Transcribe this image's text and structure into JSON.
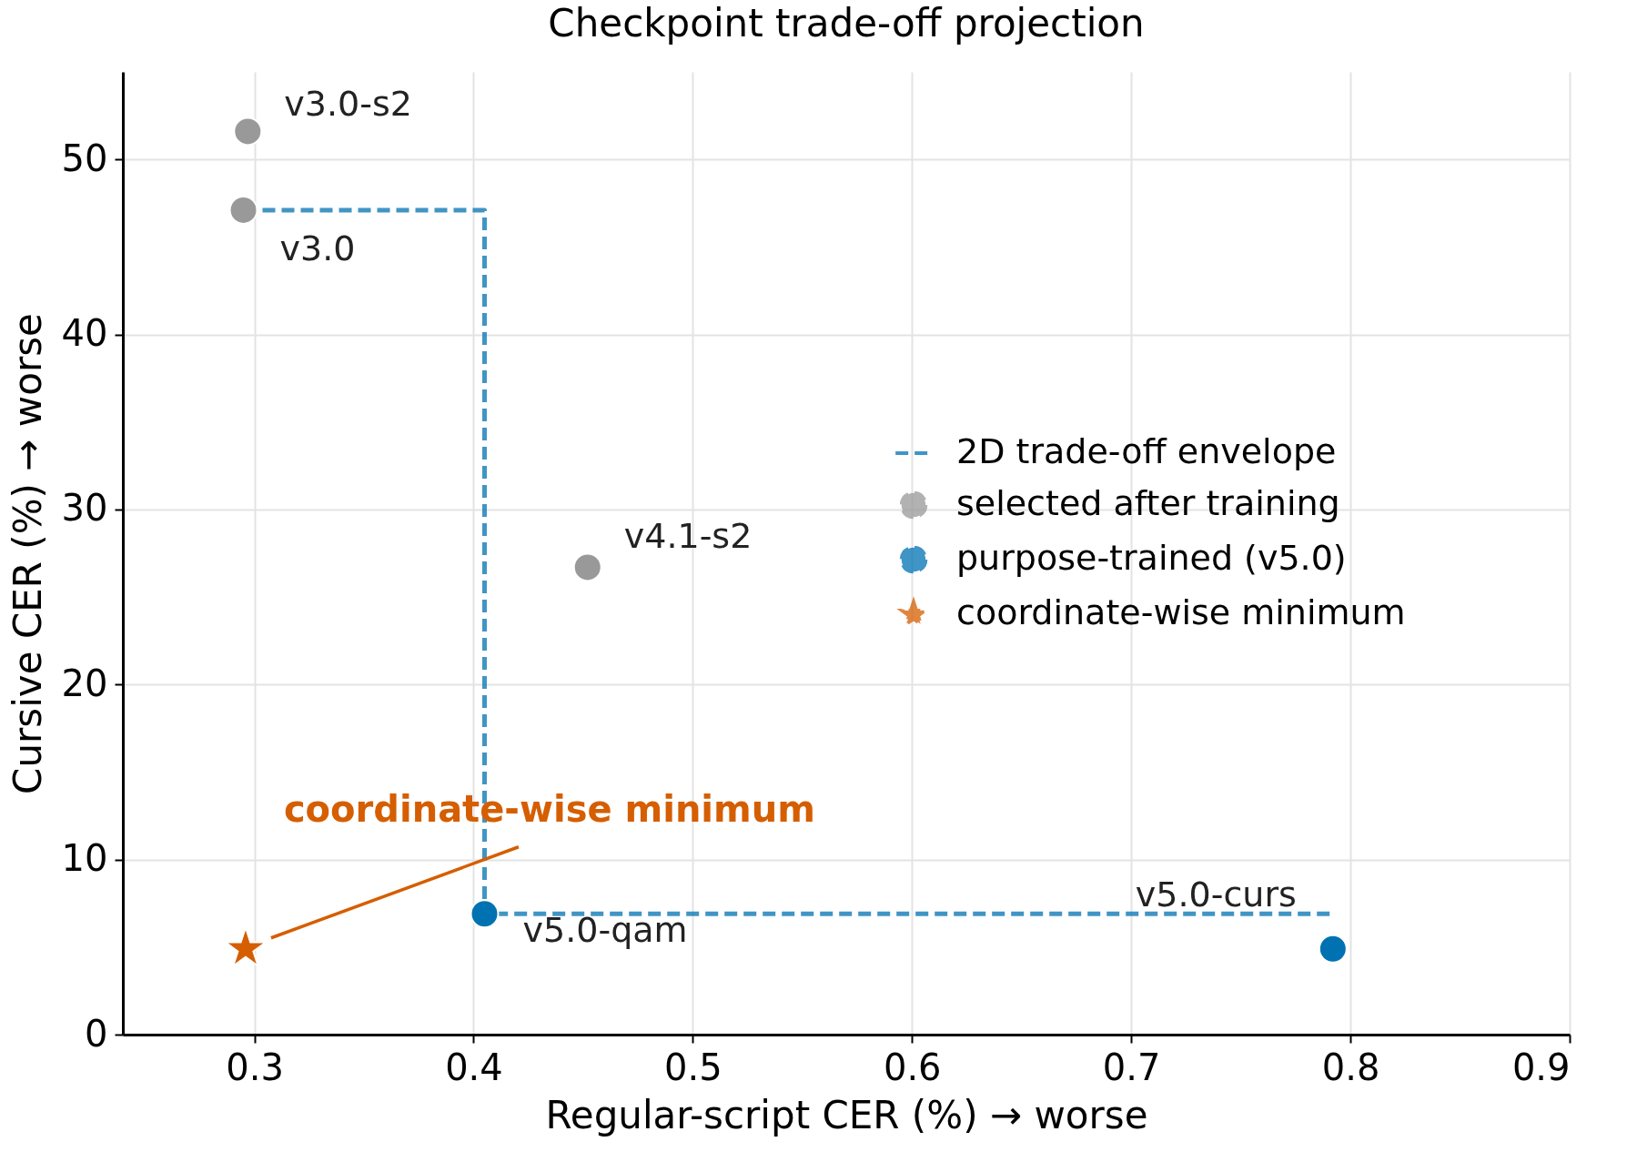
{
  "chart_data": {
    "type": "scatter",
    "title": "Checkpoint trade-off projection",
    "xlabel": "Regular-script  CER  (%)  →  worse",
    "ylabel": "Cursive  CER  (%)  →  worse",
    "xlim": [
      0.24,
      0.9
    ],
    "xticks": [
      0.3,
      0.4,
      0.5,
      0.6,
      0.7,
      0.8,
      0.9
    ],
    "ylim": [
      0,
      55
    ],
    "yticks": [
      0,
      10,
      20,
      30,
      40,
      50
    ],
    "grid": true,
    "legend": "right",
    "series": [
      {
        "name": "2D trade-off envelope",
        "type": "line",
        "line_style": "dashed",
        "marker": "none",
        "color": "#0072b2",
        "x": [
          0.295,
          0.405,
          0.405,
          0.792
        ],
        "values": [
          47.1,
          47.1,
          6.9,
          6.9
        ]
      },
      {
        "name": "selected after training",
        "type": "scatter",
        "marker": "circle",
        "color": "#999999",
        "x": [
          0.297,
          0.295,
          0.452
        ],
        "values": [
          51.6,
          47.1,
          26.7
        ]
      },
      {
        "name": "purpose-trained (v5.0)",
        "type": "scatter",
        "marker": "circle",
        "color": "#0072b2",
        "x": [
          0.405,
          0.792
        ],
        "values": [
          6.9,
          4.9
        ]
      },
      {
        "name": "coordinate-wise minimum",
        "type": "scatter",
        "marker": "star",
        "color": "#d55e00",
        "x": [
          0.296
        ],
        "values": [
          4.9
        ]
      }
    ],
    "annotations": [
      {
        "text": "v3.0-s2",
        "x": 0.297,
        "y": 51.6
      },
      {
        "text": "v3.0",
        "x": 0.295,
        "y": 47.1
      },
      {
        "text": "v4.1-s2",
        "x": 0.452,
        "y": 26.7
      },
      {
        "text": "v5.0-qam",
        "x": 0.405,
        "y": 6.9
      },
      {
        "text": "v5.0-curs",
        "x": 0.792,
        "y": 4.9
      },
      "coordinate-wise minimum"
    ]
  }
}
